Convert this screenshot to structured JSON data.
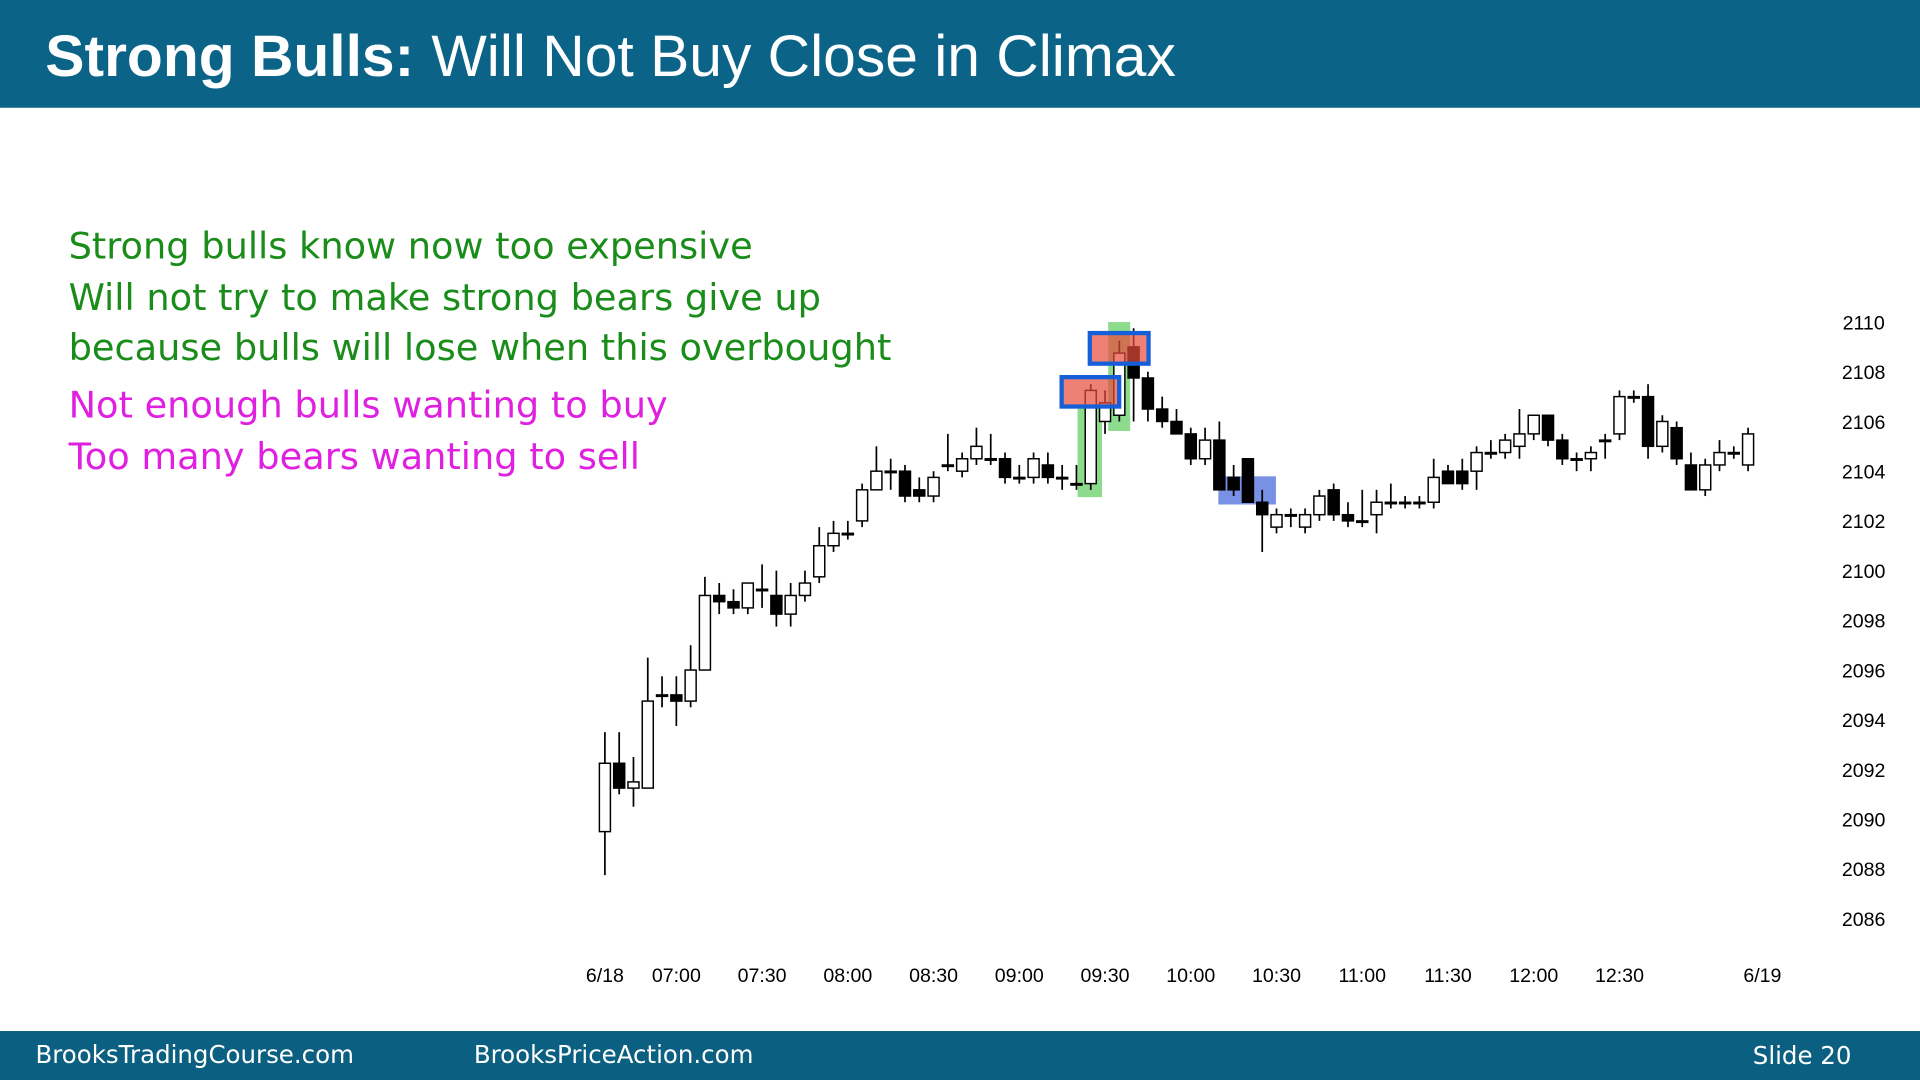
{
  "header": {
    "title_bold": "Strong Bulls:",
    "title_rest": "Will Not Buy Close in Climax"
  },
  "annotations": [
    {
      "text": "Strong bulls know now too expensive",
      "color": "#1a8c1a"
    },
    {
      "text": "Will not try to make strong bears give up",
      "color": "#1a8c1a"
    },
    {
      "text": "because bulls will lose when this overbought",
      "color": "#1a8c1a"
    },
    {
      "text": "Not enough bulls wanting to buy",
      "color": "#e020e0"
    },
    {
      "text": "Too many bears wanting to sell",
      "color": "#e020e0"
    }
  ],
  "footer": {
    "left": "BrooksTradingCourse.com",
    "center": "BrooksPriceAction.com",
    "slide": "Slide 20"
  },
  "chart_data": {
    "type": "candlestick",
    "categories": [
      "6/18",
      null,
      null,
      null,
      null,
      "07:00",
      null,
      null,
      null,
      null,
      null,
      "07:30",
      null,
      null,
      null,
      null,
      null,
      "08:00",
      null,
      null,
      null,
      null,
      null,
      "08:30",
      null,
      null,
      null,
      null,
      null,
      "09:00",
      null,
      null,
      null,
      null,
      null,
      "09:30",
      null,
      null,
      null,
      null,
      null,
      "10:00",
      null,
      null,
      null,
      null,
      null,
      "10:30",
      null,
      null,
      null,
      null,
      null,
      "11:00",
      null,
      null,
      null,
      null,
      null,
      "11:30",
      null,
      null,
      null,
      null,
      null,
      "12:00",
      null,
      null,
      null,
      null,
      null,
      "12:30",
      null,
      null,
      null,
      null,
      null,
      null,
      null,
      null,
      null,
      "6/19"
    ],
    "open": [
      2089.5,
      2092.25,
      2091.25,
      2091.25,
      2095,
      2095,
      2094.75,
      2096,
      2099,
      2098.75,
      2098.5,
      2099.25,
      2099,
      2098.25,
      2099,
      2099.75,
      2101,
      2101.5,
      2102,
      2103.25,
      2104,
      2104,
      2103.25,
      2103,
      2104.25,
      2104,
      2104.5,
      2104.5,
      2104.5,
      2103.75,
      2103.75,
      2104.25,
      2103.75,
      2103.5,
      2103.5,
      2106,
      2106.25,
      2109,
      2107.75,
      2106.5,
      2106,
      2105.5,
      2104.5,
      2105.25,
      2103.75,
      2104.5,
      2102.75,
      2101.75,
      2102.25,
      2101.75,
      2102.25,
      2103.25,
      2102.25,
      2102,
      2102.25,
      2102.75,
      2102.75,
      2102.75,
      2102.75,
      2104,
      2104,
      2104,
      2104.75,
      2104.75,
      2105,
      2105.5,
      2106.25,
      2105.25,
      2104.5,
      2104.5,
      2105.25,
      2105.5,
      2107,
      2107,
      2105,
      2105.75,
      2104.25,
      2103.25,
      2104.25,
      2104.75,
      2104.25,
      null
    ],
    "high": [
      2093.5,
      2093.5,
      2092.5,
      2096.5,
      2095.75,
      2095.75,
      2097,
      2099.75,
      2099.5,
      2099.25,
      2099.5,
      2100.25,
      2100,
      2099.5,
      2100,
      2101.75,
      2102,
      2102,
      2103.5,
      2105,
      2104.5,
      2104.25,
      2103.75,
      2104,
      2105.5,
      2104.75,
      2105.75,
      2105.5,
      2104.75,
      2104.25,
      2104.75,
      2104.75,
      2104.25,
      2104.25,
      2107.5,
      2107.25,
      2109.25,
      2109.75,
      2108,
      2107,
      2106.5,
      2105.75,
      2105.75,
      2106,
      2104.25,
      2104.5,
      2103.25,
      2102.5,
      2102.5,
      2102.5,
      2103.25,
      2103.5,
      2102.75,
      2103.25,
      2103.25,
      2103.5,
      2103,
      2103,
      2104.5,
      2104.25,
      2104.5,
      2105,
      2105.25,
      2105.5,
      2106.5,
      2106.25,
      2106.25,
      2105.5,
      2104.75,
      2105,
      2105.5,
      2107.25,
      2107.25,
      2107.5,
      2106.25,
      2106,
      2104.75,
      2104.5,
      2105.25,
      2105,
      2105.75,
      null
    ],
    "low": [
      2087.75,
      2091,
      2090.5,
      2091.25,
      2094.5,
      2093.75,
      2094.5,
      2096,
      2098.25,
      2098.25,
      2098.25,
      2098.5,
      2097.75,
      2097.75,
      2098.75,
      2099.5,
      2100.75,
      2101.25,
      2101.75,
      2103.25,
      2103.25,
      2102.75,
      2102.75,
      2102.75,
      2104,
      2103.75,
      2104.25,
      2104.25,
      2103.5,
      2103.5,
      2103.5,
      2103.5,
      2103.25,
      2103.25,
      2103.25,
      2105.5,
      2106,
      2106,
      2106,
      2105.75,
      2105.5,
      2104.25,
      2104.25,
      2103.25,
      2103,
      2102.75,
      2100.75,
      2101.5,
      2101.75,
      2101.5,
      2102,
      2102,
      2101.75,
      2101.75,
      2101.5,
      2102.5,
      2102.5,
      2102.5,
      2102.5,
      2103.5,
      2103.25,
      2103.25,
      2104.5,
      2104.5,
      2104.5,
      2105.25,
      2105,
      2104.25,
      2104,
      2104,
      2104.5,
      2105.25,
      2106.75,
      2104.5,
      2104.75,
      2104.25,
      2103.25,
      2103,
      2104,
      2104.5,
      2104,
      null
    ],
    "close": [
      2092.25,
      2091.25,
      2091.5,
      2094.75,
      2095,
      2094.75,
      2096,
      2099,
      2098.75,
      2098.5,
      2099.5,
      2099.25,
      2098.25,
      2099,
      2099.5,
      2101,
      2101.5,
      2101.5,
      2103.25,
      2104,
      2104,
      2103,
      2103,
      2103.75,
      2104.25,
      2104.5,
      2105,
      2104.5,
      2103.75,
      2103.75,
      2104.5,
      2103.75,
      2103.75,
      2103.5,
      2107.25,
      2106.75,
      2108.75,
      2107.75,
      2106.5,
      2106,
      2105.5,
      2104.5,
      2105.25,
      2103.25,
      2103.25,
      2102.75,
      2102.25,
      2102.25,
      2102.25,
      2102.25,
      2103,
      2102.25,
      2102,
      2102,
      2102.75,
      2102.75,
      2102.75,
      2102.75,
      2103.75,
      2103.5,
      2103.5,
      2104.75,
      2104.75,
      2105.25,
      2105.5,
      2106.25,
      2105.25,
      2104.5,
      2104.5,
      2104.75,
      2105.25,
      2107,
      2107,
      2105,
      2106,
      2104.5,
      2103.25,
      2104.25,
      2104.75,
      2104.75,
      2105.5,
      null
    ],
    "ylim": [
      2085,
      2111
    ],
    "yticks": [
      2086,
      2088,
      2090,
      2092,
      2094,
      2096,
      2098,
      2100,
      2102,
      2104,
      2106,
      2108,
      2110
    ],
    "up_color": "#ffffff",
    "down_color": "#000000",
    "wick_color": "#000000"
  }
}
